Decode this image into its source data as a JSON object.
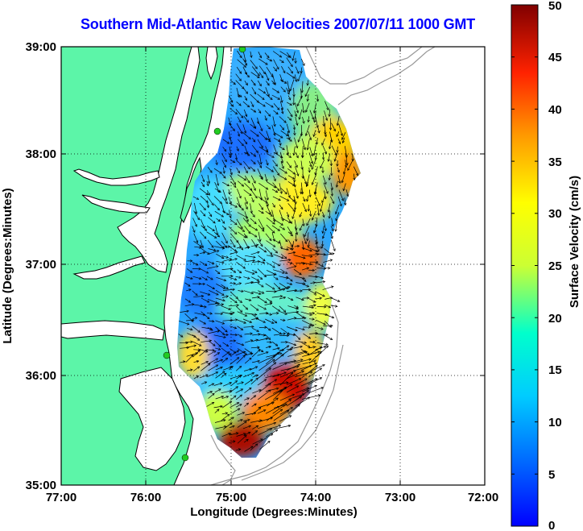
{
  "title": "Southern Mid-Atlantic Raw Velocities 2007/07/11 1000 GMT",
  "map": {
    "type": "surface-current-map",
    "lon_range": [
      -77,
      -72
    ],
    "lat_range": [
      35,
      39
    ],
    "x_ticks": [
      "77:00",
      "76:00",
      "75:00",
      "74:00",
      "73:00",
      "72:00"
    ],
    "y_ticks": [
      "39:00",
      "38:00",
      "37:00",
      "36:00",
      "35:00"
    ],
    "xlabel": "Longitude (Degrees:Minutes)",
    "ylabel": "Latitude (Degrees:Minutes)",
    "grid": "dotted",
    "land_color": "#5cf5a8",
    "stations_color": "#22cc22"
  },
  "colorbar": {
    "label": "Surface Velocity (cm/s)",
    "ticks": [
      "0",
      "5",
      "10",
      "15",
      "20",
      "25",
      "30",
      "35",
      "40",
      "45",
      "50"
    ],
    "range": [
      0,
      50
    ],
    "colormap": "jet"
  }
}
